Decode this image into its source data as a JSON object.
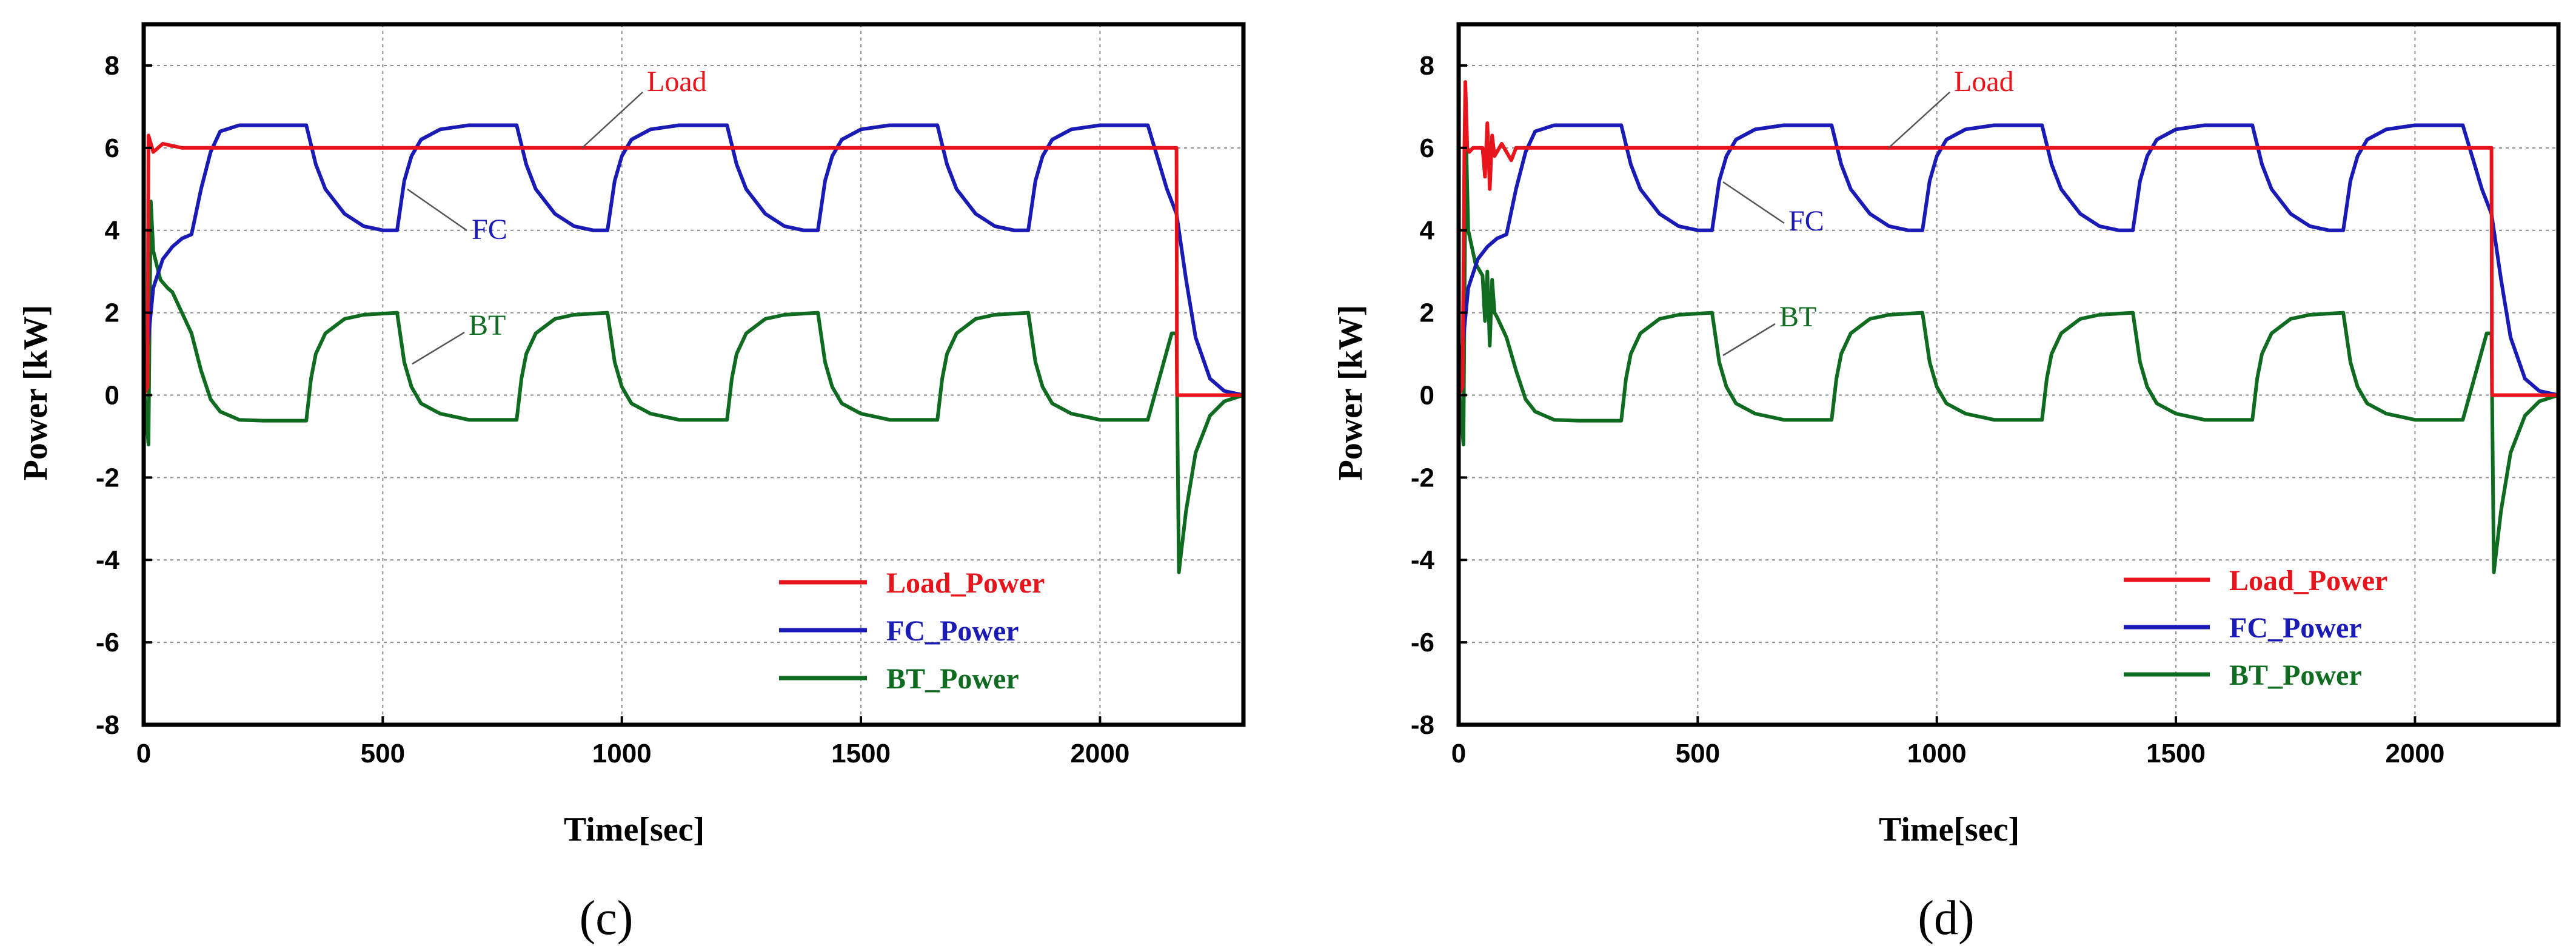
{
  "colors": {
    "load": "#e8141b",
    "fc": "#1a1ab4",
    "bt": "#0f6b1f",
    "grid": "#8c8c8c",
    "axis": "#000000"
  },
  "chart_data": [
    {
      "type": "line",
      "panel_label": "(c)",
      "xlabel": "Time[sec]",
      "ylabel": "Power [kW]",
      "xlim": [
        0,
        2300
      ],
      "ylim": [
        -8,
        9
      ],
      "xticks": [
        0,
        500,
        1000,
        1500,
        2000
      ],
      "yticks": [
        -8,
        -6,
        -4,
        -2,
        0,
        2,
        4,
        6,
        8
      ],
      "grid": true,
      "legend_position": "lower-right",
      "legend": [
        "Load_Power",
        "FC_Power",
        "BT_Power"
      ],
      "annotations": [
        "Load",
        "FC",
        "BT"
      ],
      "series": [
        {
          "name": "Load_Power",
          "x": [
            0,
            8,
            10,
            20,
            40,
            80,
            200,
            400,
            600,
            800,
            1000,
            1200,
            1400,
            1600,
            1800,
            2000,
            2160,
            2161,
            2300
          ],
          "y": [
            0,
            0.2,
            6.3,
            5.9,
            6.1,
            6.0,
            6.0,
            6.0,
            6.0,
            6.0,
            6.0,
            6.0,
            6.0,
            6.0,
            6.0,
            6.0,
            6.0,
            0,
            0
          ]
        },
        {
          "name": "FC_Power",
          "x": [
            0,
            20,
            40,
            60,
            80,
            100,
            120,
            140,
            160,
            200,
            340,
            360,
            380,
            420,
            460,
            500,
            530,
            545,
            560,
            580,
            620,
            680,
            780,
            800,
            820,
            860,
            900,
            940,
            970,
            985,
            1000,
            1020,
            1060,
            1120,
            1220,
            1240,
            1260,
            1300,
            1340,
            1380,
            1410,
            1425,
            1440,
            1460,
            1500,
            1560,
            1660,
            1680,
            1700,
            1740,
            1780,
            1820,
            1850,
            1865,
            1880,
            1900,
            1940,
            2000,
            2100,
            2140,
            2160,
            2180,
            2200,
            2230,
            2260,
            2300
          ],
          "y": [
            0.2,
            2.6,
            3.3,
            3.6,
            3.8,
            3.9,
            5.0,
            5.9,
            6.4,
            6.55,
            6.55,
            5.6,
            5.0,
            4.4,
            4.1,
            4.0,
            4.0,
            5.2,
            5.8,
            6.2,
            6.45,
            6.55,
            6.55,
            5.6,
            5.0,
            4.4,
            4.1,
            4.0,
            4.0,
            5.2,
            5.8,
            6.2,
            6.45,
            6.55,
            6.55,
            5.6,
            5.0,
            4.4,
            4.1,
            4.0,
            4.0,
            5.2,
            5.8,
            6.2,
            6.45,
            6.55,
            6.55,
            5.6,
            5.0,
            4.4,
            4.1,
            4.0,
            4.0,
            5.2,
            5.8,
            6.2,
            6.45,
            6.55,
            6.55,
            5.0,
            4.4,
            2.8,
            1.4,
            0.4,
            0.1,
            0.0
          ]
        },
        {
          "name": "BT_Power",
          "x": [
            0,
            10,
            15,
            20,
            35,
            50,
            60,
            80,
            100,
            120,
            140,
            160,
            200,
            250,
            340,
            350,
            360,
            380,
            420,
            460,
            530,
            545,
            560,
            580,
            620,
            680,
            780,
            790,
            800,
            820,
            860,
            900,
            970,
            985,
            1000,
            1020,
            1060,
            1120,
            1220,
            1230,
            1240,
            1260,
            1300,
            1340,
            1410,
            1425,
            1440,
            1460,
            1500,
            1560,
            1660,
            1670,
            1680,
            1700,
            1740,
            1780,
            1850,
            1865,
            1880,
            1900,
            1940,
            2000,
            2100,
            2150,
            2160,
            2165,
            2180,
            2200,
            2230,
            2260,
            2300
          ],
          "y": [
            0.3,
            -1.2,
            4.7,
            3.5,
            2.8,
            2.6,
            2.5,
            2.0,
            1.5,
            0.6,
            -0.1,
            -0.4,
            -0.6,
            -0.62,
            -0.62,
            0.4,
            1.0,
            1.5,
            1.85,
            1.95,
            2.0,
            0.8,
            0.2,
            -0.2,
            -0.45,
            -0.6,
            -0.6,
            0.4,
            1.0,
            1.5,
            1.85,
            1.95,
            2.0,
            0.8,
            0.2,
            -0.2,
            -0.45,
            -0.6,
            -0.6,
            0.4,
            1.0,
            1.5,
            1.85,
            1.95,
            2.0,
            0.8,
            0.2,
            -0.2,
            -0.45,
            -0.6,
            -0.6,
            0.4,
            1.0,
            1.5,
            1.85,
            1.95,
            2.0,
            0.8,
            0.2,
            -0.2,
            -0.45,
            -0.6,
            -0.6,
            1.5,
            1.5,
            -4.3,
            -2.8,
            -1.4,
            -0.5,
            -0.15,
            0.0
          ]
        }
      ]
    },
    {
      "type": "line",
      "panel_label": "(d)",
      "xlabel": "Time[sec]",
      "ylabel": "Power [kW]",
      "xlim": [
        0,
        2300
      ],
      "ylim": [
        -8,
        9
      ],
      "xticks": [
        0,
        500,
        1000,
        1500,
        2000
      ],
      "yticks": [
        -8,
        -6,
        -4,
        -2,
        0,
        2,
        4,
        6,
        8
      ],
      "grid": true,
      "legend_position": "lower-right",
      "legend": [
        "Load_Power",
        "FC_Power",
        "BT_Power"
      ],
      "annotations": [
        "Load",
        "FC",
        "BT"
      ],
      "series": [
        {
          "name": "Load_Power",
          "x": [
            0,
            8,
            12,
            14,
            18,
            22,
            30,
            50,
            55,
            60,
            65,
            70,
            75,
            90,
            110,
            120,
            200,
            400,
            600,
            800,
            1000,
            1200,
            1400,
            1600,
            1800,
            2000,
            2160,
            2161,
            2300
          ],
          "y": [
            0,
            0.2,
            6.0,
            7.6,
            6.0,
            5.9,
            6.0,
            6.0,
            5.3,
            6.6,
            5.0,
            6.3,
            5.8,
            6.1,
            5.7,
            6.0,
            6.0,
            6.0,
            6.0,
            6.0,
            6.0,
            6.0,
            6.0,
            6.0,
            6.0,
            6.0,
            6.0,
            0,
            0
          ]
        },
        {
          "name": "FC_Power",
          "x": [
            0,
            20,
            40,
            60,
            80,
            100,
            120,
            140,
            160,
            200,
            340,
            360,
            380,
            420,
            460,
            500,
            530,
            545,
            560,
            580,
            620,
            680,
            780,
            800,
            820,
            860,
            900,
            940,
            970,
            985,
            1000,
            1020,
            1060,
            1120,
            1220,
            1240,
            1260,
            1300,
            1340,
            1380,
            1410,
            1425,
            1440,
            1460,
            1500,
            1560,
            1660,
            1680,
            1700,
            1740,
            1780,
            1820,
            1850,
            1865,
            1880,
            1900,
            1940,
            2000,
            2100,
            2140,
            2160,
            2180,
            2200,
            2230,
            2260,
            2300
          ],
          "y": [
            0.2,
            2.6,
            3.3,
            3.6,
            3.8,
            3.9,
            5.0,
            5.9,
            6.4,
            6.55,
            6.55,
            5.6,
            5.0,
            4.4,
            4.1,
            4.0,
            4.0,
            5.2,
            5.8,
            6.2,
            6.45,
            6.55,
            6.55,
            5.6,
            5.0,
            4.4,
            4.1,
            4.0,
            4.0,
            5.2,
            5.8,
            6.2,
            6.45,
            6.55,
            6.55,
            5.6,
            5.0,
            4.4,
            4.1,
            4.0,
            4.0,
            5.2,
            5.8,
            6.2,
            6.45,
            6.55,
            6.55,
            5.6,
            5.0,
            4.4,
            4.1,
            4.0,
            4.0,
            5.2,
            5.8,
            6.2,
            6.45,
            6.55,
            6.55,
            5.0,
            4.4,
            2.8,
            1.4,
            0.4,
            0.1,
            0.0
          ]
        },
        {
          "name": "BT_Power",
          "x": [
            0,
            10,
            15,
            20,
            35,
            50,
            55,
            60,
            65,
            70,
            75,
            80,
            100,
            120,
            140,
            160,
            200,
            250,
            340,
            350,
            360,
            380,
            420,
            460,
            530,
            545,
            560,
            580,
            620,
            680,
            780,
            790,
            800,
            820,
            860,
            900,
            970,
            985,
            1000,
            1020,
            1060,
            1120,
            1220,
            1230,
            1240,
            1260,
            1300,
            1340,
            1410,
            1425,
            1440,
            1460,
            1500,
            1560,
            1660,
            1670,
            1680,
            1700,
            1740,
            1780,
            1850,
            1865,
            1880,
            1900,
            1940,
            2000,
            2100,
            2150,
            2160,
            2165,
            2180,
            2200,
            2230,
            2260,
            2300
          ],
          "y": [
            0.3,
            -1.2,
            6.5,
            4.0,
            3.2,
            2.9,
            1.8,
            3.0,
            1.2,
            2.8,
            2.0,
            1.9,
            1.4,
            0.6,
            -0.1,
            -0.4,
            -0.6,
            -0.62,
            -0.62,
            0.4,
            1.0,
            1.5,
            1.85,
            1.95,
            2.0,
            0.8,
            0.2,
            -0.2,
            -0.45,
            -0.6,
            -0.6,
            0.4,
            1.0,
            1.5,
            1.85,
            1.95,
            2.0,
            0.8,
            0.2,
            -0.2,
            -0.45,
            -0.6,
            -0.6,
            0.4,
            1.0,
            1.5,
            1.85,
            1.95,
            2.0,
            0.8,
            0.2,
            -0.2,
            -0.45,
            -0.6,
            -0.6,
            0.4,
            1.0,
            1.5,
            1.85,
            1.95,
            2.0,
            0.8,
            0.2,
            -0.2,
            -0.45,
            -0.6,
            -0.6,
            1.5,
            1.5,
            -4.3,
            -2.8,
            -1.4,
            -0.5,
            -0.15,
            0.0
          ]
        }
      ]
    }
  ]
}
